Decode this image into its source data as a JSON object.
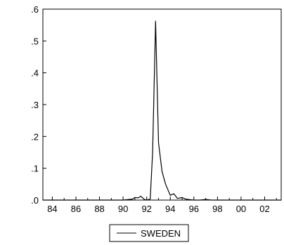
{
  "chart_data": {
    "type": "line",
    "title": "",
    "xlabel": "",
    "ylabel": "",
    "x_tick_labels": [
      "84",
      "86",
      "88",
      "90",
      "92",
      "94",
      "96",
      "98",
      "00",
      "02"
    ],
    "y_tick_labels": [
      ".0",
      ".1",
      ".2",
      ".3",
      ".4",
      ".5",
      ".6"
    ],
    "xlim": [
      1983.2,
      2003.4
    ],
    "ylim": [
      0,
      0.6
    ],
    "grid": false,
    "legend": {
      "placement": "bottom-center"
    },
    "series": [
      {
        "name": "SWEDEN",
        "color": "#000000",
        "x": [
          1983.2,
          1990.0,
          1990.5,
          1990.8,
          1991.0,
          1991.3,
          1991.5,
          1991.8,
          1992.0,
          1992.3,
          1992.5,
          1992.75,
          1993.0,
          1993.3,
          1993.6,
          1994.0,
          1994.3,
          1994.6,
          1995.0,
          1995.3,
          1995.7,
          1996.0,
          1996.5,
          1997.0,
          1997.5,
          1998.0,
          1999.0,
          2000.0,
          2001.0,
          2002.0,
          2003.4
        ],
        "values": [
          0.0,
          0.0,
          0.002,
          0.003,
          0.008,
          0.007,
          0.012,
          0.002,
          0.0,
          0.003,
          0.15,
          0.562,
          0.18,
          0.09,
          0.05,
          0.015,
          0.02,
          0.005,
          0.008,
          0.003,
          0.001,
          0.0,
          0.0,
          0.002,
          0.0,
          0.0,
          0.0,
          0.0,
          0.0,
          0.0,
          0.0
        ]
      }
    ]
  }
}
